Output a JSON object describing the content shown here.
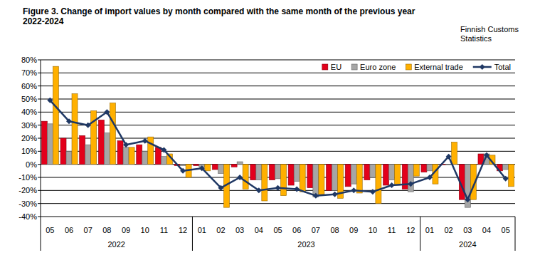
{
  "chart_data": {
    "type": "bar",
    "title": "Figure 3. Change of import values by month compared with the same month of the previous year 2022-2024",
    "source": "Finnish Customs Statistics",
    "categories": [
      "05",
      "06",
      "07",
      "08",
      "09",
      "10",
      "11",
      "12",
      "01",
      "02",
      "03",
      "04",
      "05",
      "06",
      "07",
      "08",
      "09",
      "10",
      "11",
      "12",
      "01",
      "02",
      "03",
      "04",
      "05"
    ],
    "x_groups": [
      {
        "label": "2022",
        "span": 8
      },
      {
        "label": "2023",
        "span": 12
      },
      {
        "label": "2024",
        "span": 5
      }
    ],
    "series": [
      {
        "name": "EU",
        "type": "bar",
        "color": "#e3001b",
        "values": [
          33,
          20,
          22,
          34,
          18,
          15,
          13,
          -1,
          -1,
          -4,
          -2,
          -12,
          -12,
          -16,
          -18,
          -20,
          -17,
          -12,
          -16,
          -19,
          -6,
          0,
          -27,
          8,
          -5
        ]
      },
      {
        "name": "Euro zone",
        "type": "bar",
        "color": "#a6a6a6",
        "values": [
          31,
          10,
          15,
          24,
          13,
          10,
          6,
          -1,
          -2,
          -7,
          2,
          -12,
          -11,
          -13,
          -25,
          -20,
          -15,
          -10,
          -12,
          -21,
          -5,
          0,
          -33,
          8,
          -4
        ]
      },
      {
        "name": "External trade",
        "type": "bar",
        "color": "#ffb000",
        "values": [
          75,
          54,
          41,
          47,
          13,
          21,
          8,
          -10,
          -5,
          -33,
          -19,
          -28,
          -24,
          -21,
          -23,
          -26,
          -22,
          -30,
          -16,
          -9,
          -15,
          17,
          -27,
          7,
          -17
        ]
      },
      {
        "name": "Total",
        "type": "line",
        "color": "#1f3864",
        "marker": "diamond",
        "values": [
          49,
          33,
          30,
          40,
          15,
          18,
          11,
          -5,
          -3,
          -18,
          -10,
          -20,
          -18,
          -19,
          -24,
          -23,
          -20,
          -21,
          -16,
          -15,
          -10,
          6,
          -27,
          7,
          -11
        ]
      }
    ],
    "ylim": [
      -40,
      80
    ],
    "yticks": [
      {
        "value": -40,
        "label": "-40%"
      },
      {
        "value": -30,
        "label": "-30%"
      },
      {
        "value": -20,
        "label": "-20%"
      },
      {
        "value": -10,
        "label": "-10%"
      },
      {
        "value": 0,
        "label": "0%"
      },
      {
        "value": 10,
        "label": "10%"
      },
      {
        "value": 20,
        "label": "20%"
      },
      {
        "value": 30,
        "label": "30%"
      },
      {
        "value": 40,
        "label": "40%"
      },
      {
        "value": 50,
        "label": "50%"
      },
      {
        "value": 60,
        "label": "60%"
      },
      {
        "value": 70,
        "label": "70%"
      },
      {
        "value": 80,
        "label": "80%"
      }
    ],
    "grid": true,
    "legend": "upper right"
  }
}
